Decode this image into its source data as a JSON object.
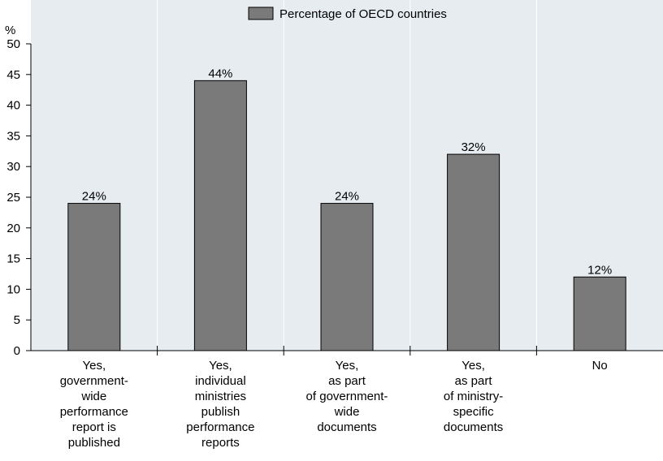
{
  "chart_data": {
    "type": "bar",
    "y_unit_label": "%",
    "legend": {
      "label": "Percentage of OECD countries",
      "placement": "top-center"
    },
    "categories": [
      [
        "Yes,",
        "government-",
        "wide",
        "performance",
        "report is",
        "published"
      ],
      [
        "Yes,",
        "individual",
        "ministries",
        "publish",
        "performance",
        "reports"
      ],
      [
        "Yes,",
        "as part",
        "of government-",
        "wide",
        "documents"
      ],
      [
        "Yes,",
        "as part",
        "of ministry-",
        "specific",
        "documents"
      ],
      [
        "No"
      ]
    ],
    "values": [
      24,
      44,
      24,
      32,
      12
    ],
    "data_labels": [
      "24%",
      "44%",
      "24%",
      "32%",
      "12%"
    ],
    "ylim": [
      0,
      50
    ],
    "yticks": [
      0,
      5,
      10,
      15,
      20,
      25,
      30,
      35,
      40,
      45,
      50
    ],
    "grid": {
      "horizontal": false,
      "vertical": true
    },
    "colors": {
      "bar": "#7a7a7a",
      "bar_stroke": "#000000",
      "plot_bg": "#e7ecf0",
      "grid": "#ffffff"
    }
  }
}
